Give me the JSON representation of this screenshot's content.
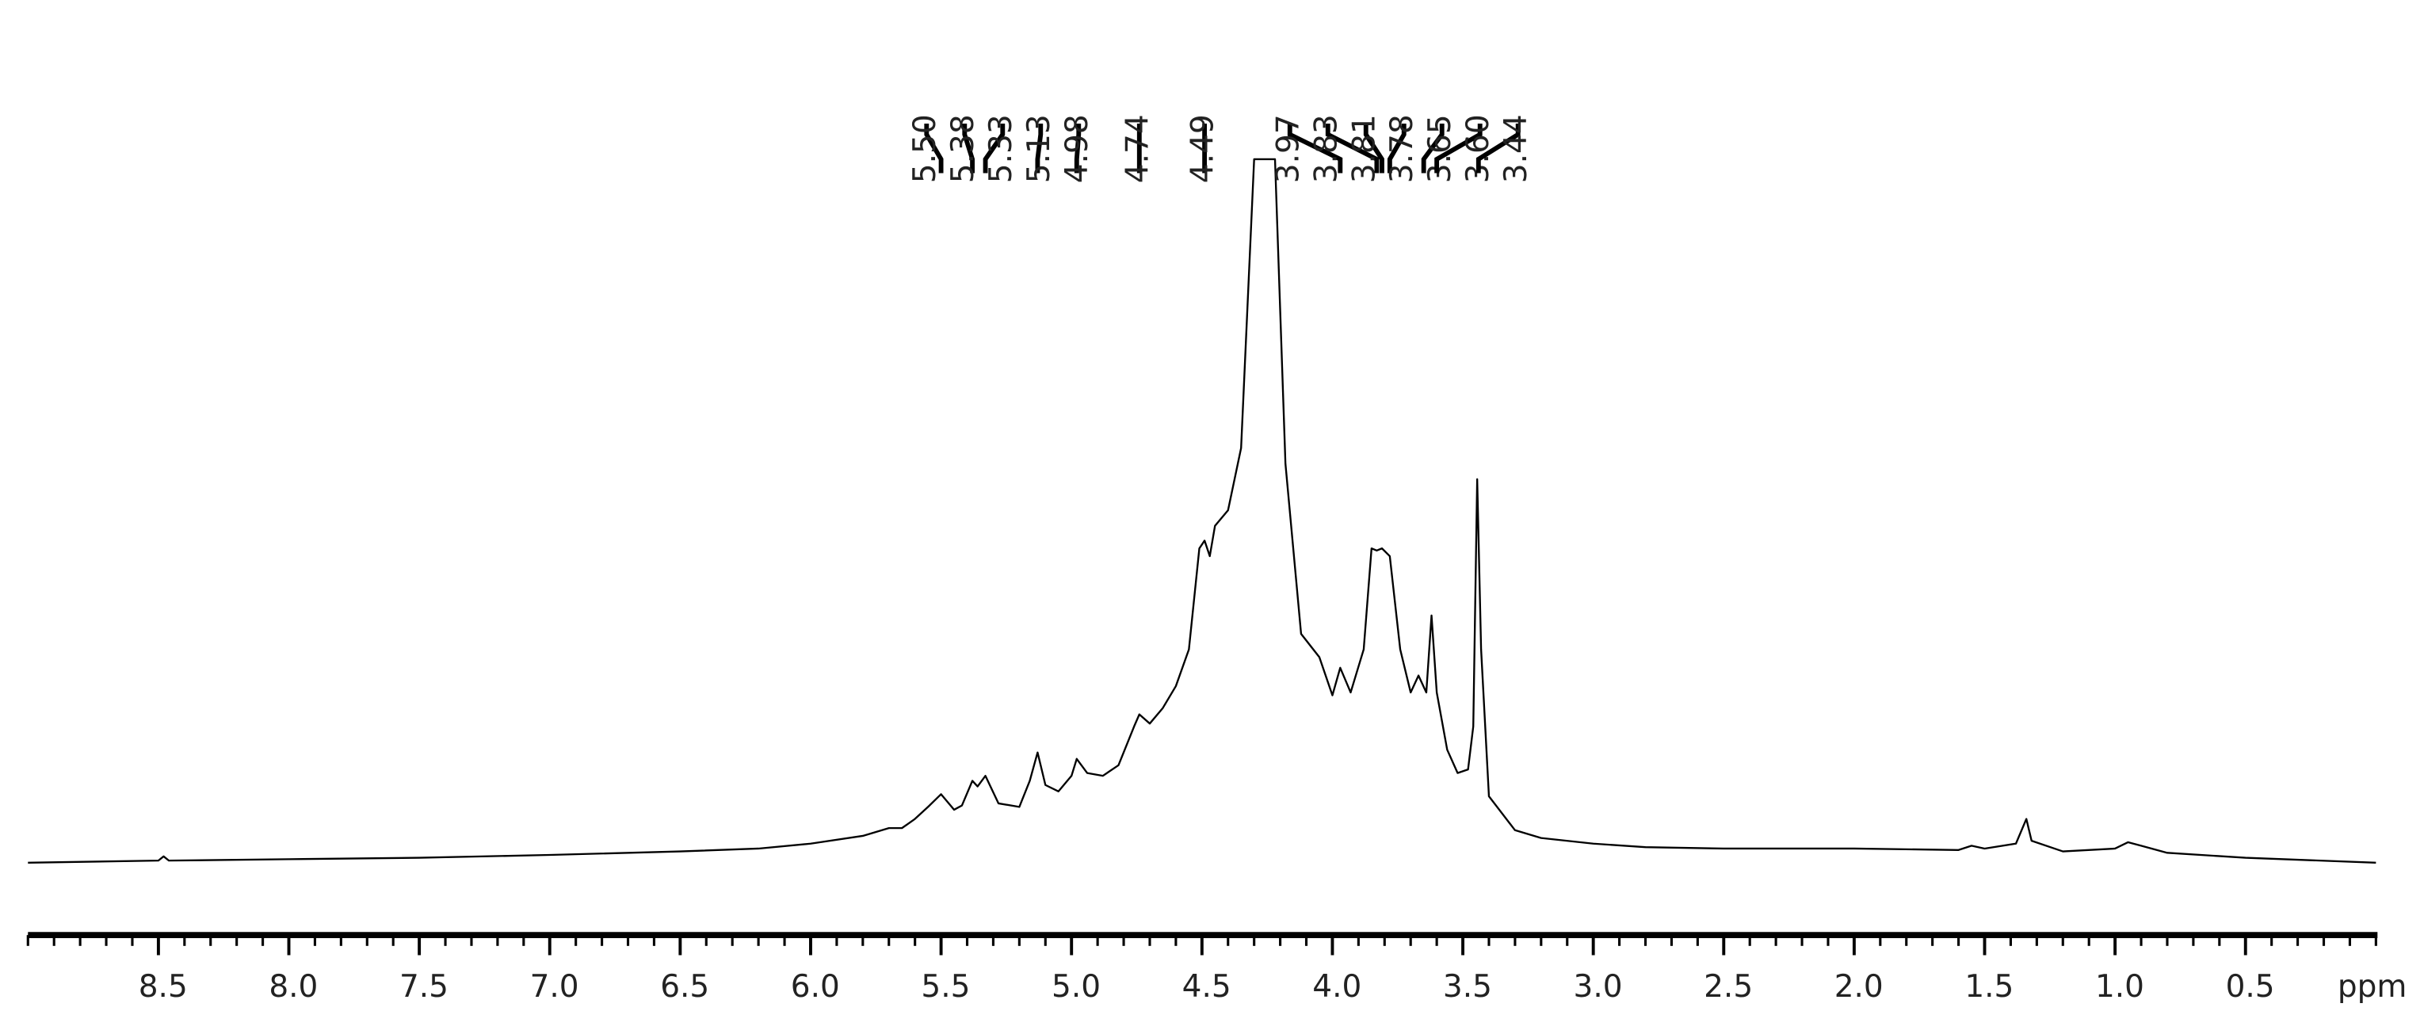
{
  "chart_data": {
    "type": "line",
    "x": [
      9.0,
      8.5,
      8.48,
      8.46,
      8.0,
      7.5,
      7.0,
      6.5,
      6.2,
      6.0,
      5.8,
      5.7,
      5.65,
      5.6,
      5.55,
      5.5,
      5.45,
      5.42,
      5.38,
      5.36,
      5.33,
      5.28,
      5.2,
      5.16,
      5.13,
      5.1,
      5.05,
      5.0,
      4.98,
      4.94,
      4.88,
      4.82,
      4.76,
      4.74,
      4.7,
      4.65,
      4.6,
      4.55,
      4.51,
      4.49,
      4.47,
      4.45,
      4.4,
      4.35,
      4.3,
      4.22,
      4.18,
      4.12,
      4.05,
      4.0,
      3.97,
      3.93,
      3.88,
      3.85,
      3.83,
      3.81,
      3.78,
      3.74,
      3.7,
      3.67,
      3.64,
      3.62,
      3.6,
      3.56,
      3.52,
      3.48,
      3.46,
      3.445,
      3.43,
      3.4,
      3.3,
      3.2,
      3.0,
      2.8,
      2.5,
      2.0,
      1.6,
      1.55,
      1.5,
      1.38,
      1.34,
      1.32,
      1.2,
      1.0,
      0.95,
      0.9,
      0.8,
      0.5,
      0.0
    ],
    "values": [
      0.4,
      0.7,
      1.3,
      0.7,
      0.9,
      1.1,
      1.5,
      2.0,
      2.4,
      3.1,
      4.2,
      5.3,
      5.3,
      6.6,
      8.3,
      10.1,
      7.9,
      8.5,
      12.0,
      11.2,
      12.7,
      8.8,
      8.3,
      12.0,
      16.0,
      11.4,
      10.5,
      12.7,
      15.1,
      13.1,
      12.7,
      14.2,
      19.7,
      21.4,
      20.1,
      22.3,
      25.4,
      30.6,
      44.9,
      46.0,
      43.8,
      48.1,
      50.3,
      59.1,
      100,
      100,
      56.9,
      32.8,
      29.5,
      24.1,
      28.0,
      24.5,
      30.6,
      44.9,
      44.6,
      44.9,
      43.8,
      30.6,
      24.5,
      26.9,
      24.5,
      35.4,
      24.5,
      16.4,
      13.1,
      13.6,
      19.7,
      54.7,
      30.6,
      9.8,
      5.0,
      3.9,
      3.1,
      2.6,
      2.4,
      2.4,
      2.2,
      2.8,
      2.4,
      3.1,
      6.6,
      3.5,
      2.0,
      2.4,
      3.3,
      2.8,
      1.8,
      1.1,
      0.4
    ],
    "color": "#000000",
    "xlim": [
      9,
      0
    ],
    "ylim": [
      0,
      100
    ],
    "xticks": [
      8.5,
      {
        "value": 8,
        "label": "8.0"
      },
      7.5,
      {
        "value": 7,
        "label": "7.0"
      },
      6.5,
      {
        "value": 6,
        "label": "6.0"
      },
      5.5,
      {
        "value": 5,
        "label": "5.0"
      },
      4.5,
      {
        "value": 4,
        "label": "4.0"
      },
      3.5,
      {
        "value": 3,
        "label": "3.0"
      },
      2.5,
      {
        "value": 2,
        "label": "2.0"
      },
      1.5,
      {
        "value": 1,
        "label": "1.0"
      },
      0.5
    ],
    "xminorticks": [
      0,
      0.1,
      0.2,
      0.3,
      0.4,
      0.5,
      0.6,
      0.7,
      0.8,
      0.9,
      1.0,
      1.1,
      1.2,
      1.3,
      1.4,
      1.5,
      1.6,
      1.7,
      1.8,
      1.9,
      2.0,
      2.1,
      2.2,
      2.3,
      2.4,
      2.5,
      2.6,
      2.7,
      2.8,
      2.9,
      3.0,
      3.1,
      3.2,
      3.3,
      3.4,
      3.5,
      3.6,
      3.7,
      3.8,
      3.9,
      4.0,
      4.1,
      4.2,
      4.3,
      4.4,
      4.5,
      4.6,
      4.7,
      4.8,
      4.9,
      5.0,
      5.1,
      5.2,
      5.3,
      5.4,
      5.5,
      5.6,
      5.7,
      5.8,
      5.9,
      6.0,
      6.1,
      6.2,
      6.3,
      6.4,
      6.5,
      6.6,
      6.7,
      6.8,
      6.9,
      7.0,
      7.1,
      7.2,
      7.3,
      7.4,
      7.5,
      7.6,
      7.7,
      7.8,
      7.9,
      8.0,
      8.1,
      8.2,
      8.3,
      8.4,
      8.5,
      8.6,
      8.7,
      8.8,
      8.9,
      9.0
    ],
    "xlabel": "ppm",
    "peaks": [
      {
        "value": 5.5,
        "label": "5.50"
      },
      {
        "value": 5.38,
        "label": "5.38"
      },
      {
        "value": 5.33,
        "label": "5.33"
      },
      {
        "value": 5.13,
        "label": "5.13"
      },
      {
        "value": 4.98,
        "label": "4.98"
      },
      {
        "value": 4.74,
        "label": "4.74"
      },
      {
        "value": 4.49,
        "label": "4.49"
      },
      {
        "value": 3.97,
        "label": "3.97"
      },
      {
        "value": 3.83,
        "label": "3.83"
      },
      {
        "value": 3.81,
        "label": "3.81"
      },
      {
        "value": 3.78,
        "label": "3.78"
      },
      {
        "value": 3.65,
        "label": "3.65"
      },
      {
        "value": 3.6,
        "label": "3.60"
      },
      {
        "value": 3.44,
        "label": "3.44"
      }
    ]
  }
}
